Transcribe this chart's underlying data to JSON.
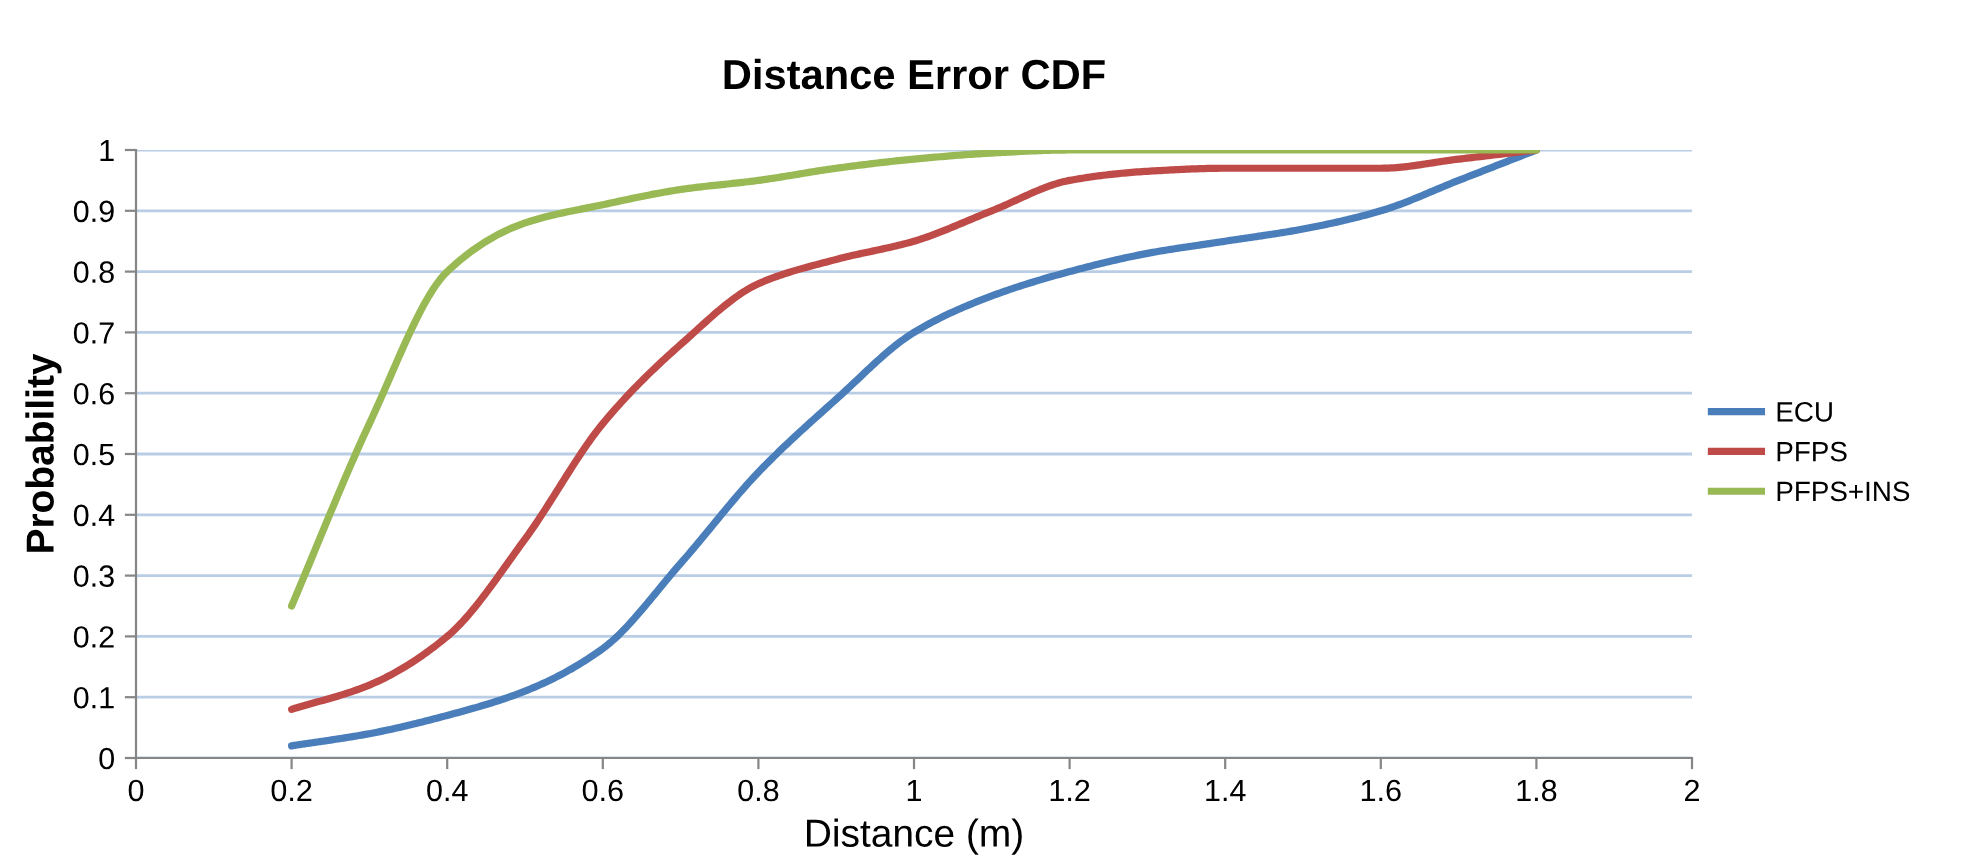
{
  "chart_data": {
    "type": "line",
    "title": "Distance Error CDF",
    "xlabel": "Distance (m)",
    "ylabel": "Probability",
    "x": [
      0.2,
      0.3,
      0.4,
      0.5,
      0.6,
      0.7,
      0.8,
      0.9,
      1.0,
      1.1,
      1.2,
      1.3,
      1.4,
      1.5,
      1.6,
      1.7,
      1.8
    ],
    "series": [
      {
        "name": "ECU",
        "color": "#4a7ebb",
        "values": [
          0.02,
          0.04,
          0.07,
          0.11,
          0.18,
          0.32,
          0.47,
          0.59,
          0.7,
          0.76,
          0.8,
          0.83,
          0.85,
          0.87,
          0.9,
          0.95,
          1.0
        ]
      },
      {
        "name": "PFPS",
        "color": "#be4b48",
        "values": [
          0.08,
          0.12,
          0.2,
          0.36,
          0.55,
          0.68,
          0.78,
          0.82,
          0.85,
          0.9,
          0.95,
          0.965,
          0.97,
          0.97,
          0.97,
          0.985,
          1.0
        ]
      },
      {
        "name": "PFPS+INS",
        "color": "#98b954",
        "values": [
          0.25,
          0.55,
          0.8,
          0.88,
          0.91,
          0.935,
          0.95,
          0.97,
          0.985,
          0.995,
          1.0,
          1.0,
          1.0,
          1.0,
          1.0,
          1.0,
          1.0
        ]
      }
    ],
    "xlim": [
      0,
      2
    ],
    "xticks": [
      0,
      0.2,
      0.4,
      0.6,
      0.8,
      1,
      1.2,
      1.4,
      1.6,
      1.8,
      2
    ],
    "ylim": [
      0,
      1
    ],
    "yticks": [
      0,
      0.1,
      0.2,
      0.3,
      0.4,
      0.5,
      0.6,
      0.7,
      0.8,
      0.9,
      1
    ],
    "grid": "y",
    "legend": "right",
    "marker": "none",
    "line_style": "solid"
  }
}
